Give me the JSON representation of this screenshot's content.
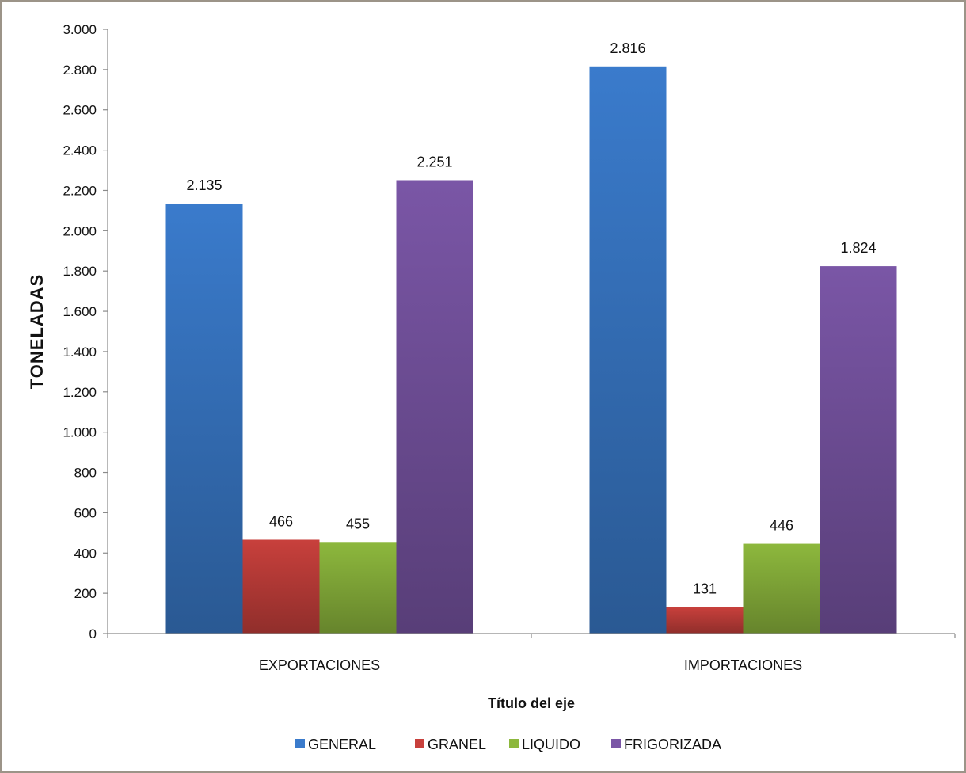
{
  "chart_data": {
    "type": "bar",
    "title": "",
    "xlabel": "Título del eje",
    "ylabel": "TONELADAS",
    "categories": [
      "EXPORTACIONES",
      "IMPORTACIONES"
    ],
    "series": [
      {
        "name": "GENERAL",
        "color": "#3a7bcc",
        "values": [
          2135,
          2816
        ],
        "labels": [
          "2.135",
          "2.816"
        ]
      },
      {
        "name": "GRANEL",
        "color": "#c8403c",
        "values": [
          466,
          131
        ],
        "labels": [
          "466",
          "131"
        ]
      },
      {
        "name": "LIQUIDO",
        "color": "#8db83d",
        "values": [
          455,
          446
        ],
        "labels": [
          "455",
          "446"
        ]
      },
      {
        "name": "FRIGORIZADA",
        "color": "#7a56a6",
        "values": [
          2251,
          1824
        ],
        "labels": [
          "2.251",
          "1.824"
        ]
      }
    ],
    "ylim": [
      0,
      3000
    ],
    "yticks": [
      0,
      200,
      400,
      600,
      800,
      1000,
      1200,
      1400,
      1600,
      1800,
      2000,
      2200,
      2400,
      2600,
      2800,
      3000
    ],
    "ytick_labels": [
      "0",
      "200",
      "400",
      "600",
      "800",
      "1.000",
      "1.200",
      "1.400",
      "1.600",
      "1.800",
      "2.000",
      "2.200",
      "2.400",
      "2.600",
      "2.800",
      "3.000"
    ],
    "grid": false,
    "legend_position": "bottom"
  }
}
